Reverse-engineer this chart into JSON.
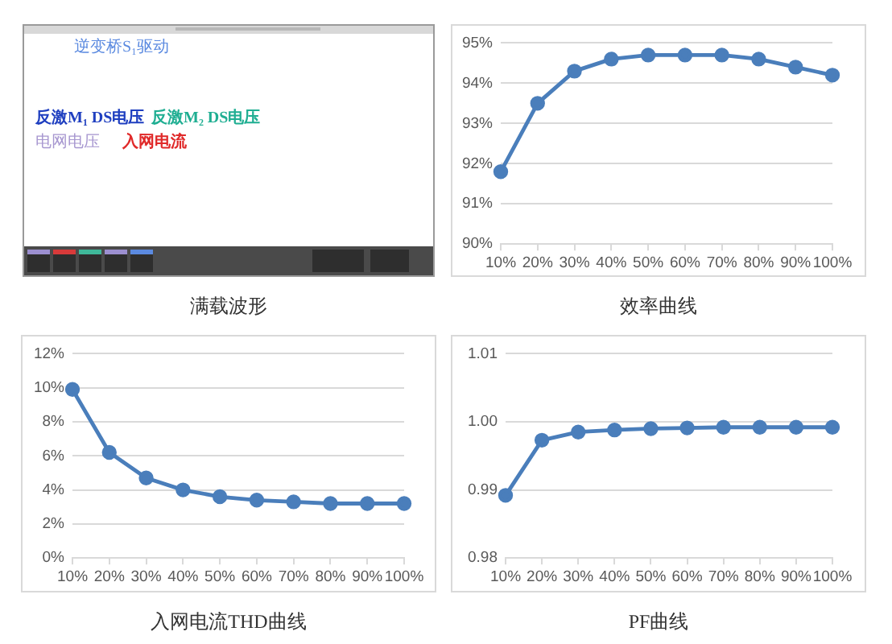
{
  "chart_data": [
    {
      "type": "other",
      "title": "满载波形",
      "annotations": [
        "逆变桥S₁驱动",
        "反激M₁ DS电压",
        "反激M₂ DS电压",
        "电网电压",
        "入网电流"
      ]
    },
    {
      "type": "line",
      "title": "效率曲线",
      "categories": [
        "10%",
        "20%",
        "30%",
        "40%",
        "50%",
        "60%",
        "70%",
        "80%",
        "90%",
        "100%"
      ],
      "values": [
        91.8,
        93.5,
        94.3,
        94.6,
        94.7,
        94.7,
        94.7,
        94.6,
        94.4,
        94.2
      ],
      "color": "#4a7ebb",
      "ylim": [
        90,
        95
      ],
      "yticks": [
        {
          "value": 90,
          "label": "90%"
        },
        {
          "value": 91,
          "label": "91%"
        },
        {
          "value": 92,
          "label": "92%"
        },
        {
          "value": 93,
          "label": "93%"
        },
        {
          "value": 94,
          "label": "94%"
        },
        {
          "value": 95,
          "label": "95%"
        }
      ],
      "grid": "y",
      "marker": "circle"
    },
    {
      "type": "line",
      "title": "入网电流THD曲线",
      "categories": [
        "10%",
        "20%",
        "30%",
        "40%",
        "50%",
        "60%",
        "70%",
        "80%",
        "90%",
        "100%"
      ],
      "values": [
        9.9,
        6.2,
        4.7,
        4.0,
        3.6,
        3.4,
        3.3,
        3.2,
        3.2,
        3.2
      ],
      "color": "#4a7ebb",
      "ylim": [
        0,
        12
      ],
      "yticks": [
        {
          "value": 0,
          "label": "0%"
        },
        {
          "value": 2,
          "label": "2%"
        },
        {
          "value": 4,
          "label": "4%"
        },
        {
          "value": 6,
          "label": "6%"
        },
        {
          "value": 8,
          "label": "8%"
        },
        {
          "value": 10,
          "label": "10%"
        },
        {
          "value": 12,
          "label": "12%"
        }
      ],
      "grid": "y",
      "marker": "circle"
    },
    {
      "type": "line",
      "title": "PF曲线",
      "categories": [
        "10%",
        "20%",
        "30%",
        "40%",
        "50%",
        "60%",
        "70%",
        "80%",
        "90%",
        "100%"
      ],
      "values": [
        0.9892,
        0.9973,
        0.9985,
        0.9988,
        0.999,
        0.9991,
        0.9992,
        0.9992,
        0.9992,
        0.9992
      ],
      "color": "#4a7ebb",
      "ylim": [
        0.98,
        1.01
      ],
      "yticks": [
        0.98,
        0.99,
        {
          "value": 1,
          "label": "1.00"
        },
        1.01
      ],
      "grid": "y",
      "marker": "circle"
    }
  ]
}
